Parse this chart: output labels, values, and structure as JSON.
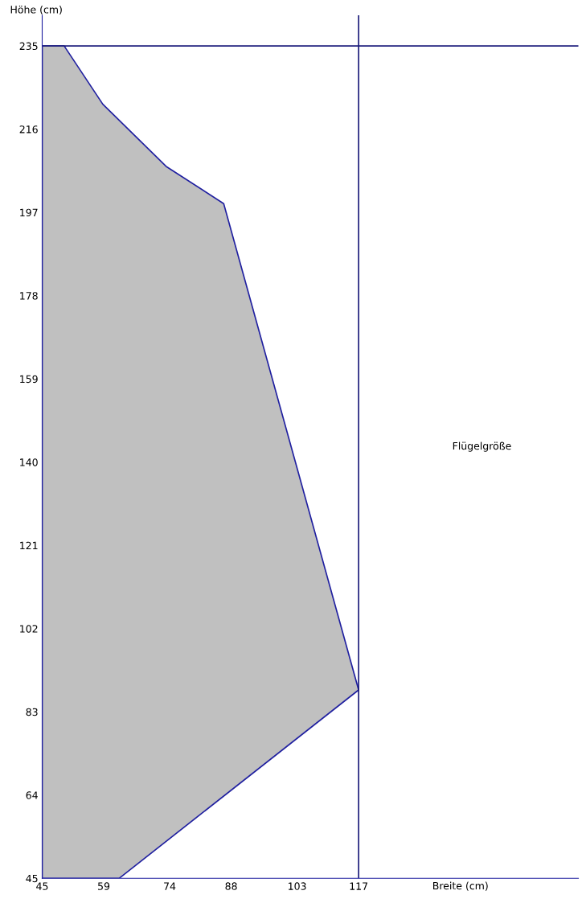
{
  "chart_data": {
    "type": "area",
    "xlabel": "Breite (cm)",
    "ylabel": "Höhe (cm)",
    "annotations": [
      "Flügelgröße"
    ],
    "series": [
      {
        "color": "#c0c0c0",
        "x": [
          45,
          62.5,
          117,
          86.3,
          73.2,
          58.8,
          50,
          45
        ],
        "values": [
          45,
          45,
          88,
          199,
          207.5,
          221.7,
          235,
          235
        ]
      }
    ],
    "xlim": [
      45,
      167
    ],
    "ylim": [
      45,
      242
    ],
    "xticks": [
      45,
      59,
      74,
      88,
      103,
      117
    ],
    "yticks": [
      45,
      64,
      83,
      102,
      121,
      140,
      159,
      178,
      197,
      216,
      235
    ],
    "ref_lines": [
      {
        "axis": "x",
        "value": 117,
        "color": "#1a1a7a"
      },
      {
        "axis": "y",
        "value": 235,
        "color": "#1a1a7a"
      }
    ],
    "grid": false,
    "legend": false
  }
}
